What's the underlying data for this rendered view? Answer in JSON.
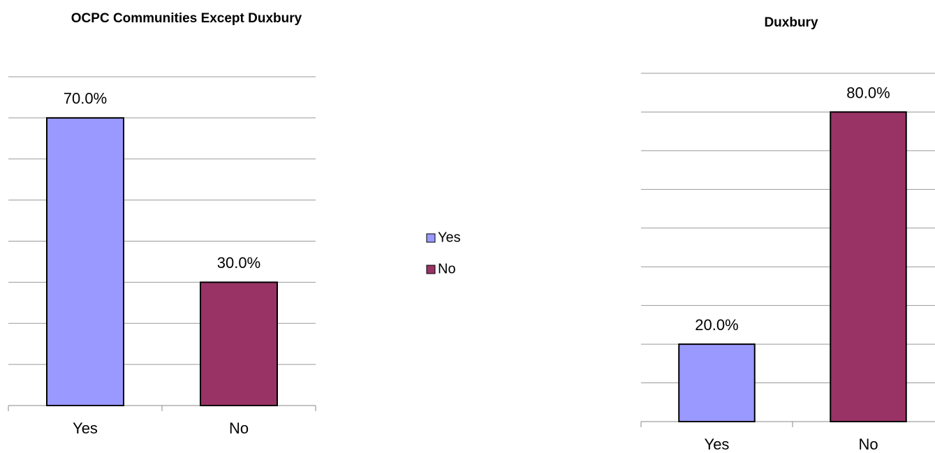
{
  "chart_data": [
    {
      "type": "bar",
      "title": "OCPC Communities Except Duxbury",
      "categories": [
        "Yes",
        "No"
      ],
      "values": [
        70,
        30
      ],
      "value_labels": [
        "70.0%",
        "30.0%"
      ],
      "colors": [
        "#9999ff",
        "#993366"
      ],
      "ylim": [
        0,
        80
      ],
      "yticks": [
        0,
        10,
        20,
        30,
        40,
        50,
        60,
        70,
        80
      ],
      "grid": true
    },
    {
      "type": "bar",
      "title": "Duxbury",
      "categories": [
        "Yes",
        "No"
      ],
      "values": [
        20,
        80
      ],
      "value_labels": [
        "20.0%",
        "80.0%"
      ],
      "colors": [
        "#9999ff",
        "#993366"
      ],
      "ylim": [
        0,
        90
      ],
      "yticks": [
        0,
        10,
        20,
        30,
        40,
        50,
        60,
        70,
        80,
        90
      ],
      "grid": true
    }
  ]
}
